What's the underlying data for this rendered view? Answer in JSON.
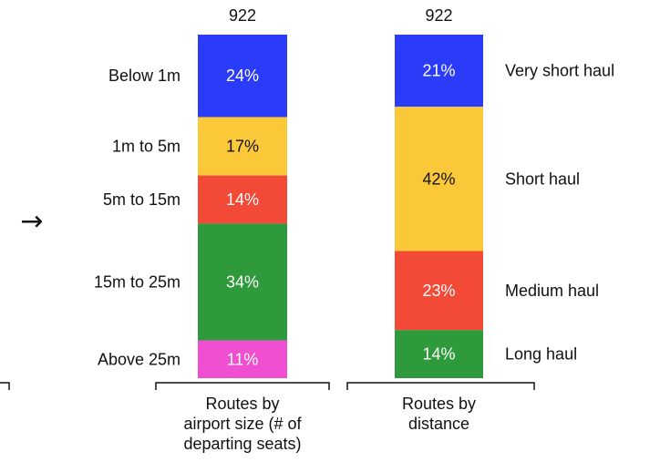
{
  "chart_data": {
    "type": "bar",
    "stacked": true,
    "normalized_percent": true,
    "arrow_glyph": "→",
    "columns": [
      {
        "total": "922",
        "axis_label": [
          "Routes by",
          "airport size (# of",
          "departing seats)"
        ],
        "label_side": "left",
        "segments": [
          {
            "label": "Below 1m",
            "value": 24,
            "text": "24%",
            "color": "#2a3cf7",
            "text_color": "#ffffff"
          },
          {
            "label": "1m to 5m",
            "value": 17,
            "text": "17%",
            "color": "#fbc83a",
            "text_color": "#111111"
          },
          {
            "label": "5m to 15m",
            "value": 14,
            "text": "14%",
            "color": "#f24a37",
            "text_color": "#ffffff"
          },
          {
            "label": "15m to 25m",
            "value": 34,
            "text": "34%",
            "color": "#2e9a3c",
            "text_color": "#ffffff"
          },
          {
            "label": "Above 25m",
            "value": 11,
            "text": "11%",
            "color": "#ef4fd0",
            "text_color": "#ffffff"
          }
        ]
      },
      {
        "total": "922",
        "axis_label": [
          "Routes by",
          "distance"
        ],
        "label_side": "right",
        "segments": [
          {
            "label": "Very short haul",
            "value": 21,
            "text": "21%",
            "color": "#2a3cf7",
            "text_color": "#ffffff"
          },
          {
            "label": "Short haul",
            "value": 42,
            "text": "42%",
            "color": "#fbc83a",
            "text_color": "#111111"
          },
          {
            "label": "Medium haul",
            "value": 23,
            "text": "23%",
            "color": "#f24a37",
            "text_color": "#ffffff"
          },
          {
            "label": "Long haul",
            "value": 14,
            "text": "14%",
            "color": "#2e9a3c",
            "text_color": "#ffffff"
          }
        ]
      }
    ]
  }
}
